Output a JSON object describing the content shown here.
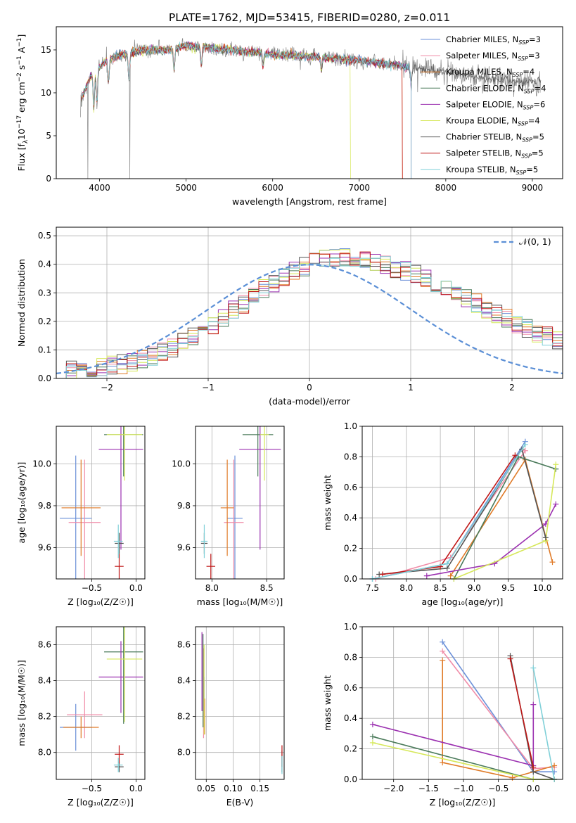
{
  "title": "PLATE=1762, MJD=53415, FIBERID=0280, z=0.011",
  "colors": [
    "#6a8fd8",
    "#f08ca8",
    "#e07b28",
    "#4a7a5a",
    "#9b30b0",
    "#d6e85a",
    "#555555",
    "#c01818",
    "#80d0d8"
  ],
  "chart_data": [
    {
      "type": "line",
      "id": "spectrum",
      "xlabel": "wavelength [Angstrom, rest frame]",
      "ylabel": "Flux [f",
      "ylabel_parts": {
        "base": "Flux [f",
        "sub": "λ",
        "mid": "10",
        "sup": "−17",
        "tail": " erg cm",
        "sup2": "−2",
        "tail2": " s",
        "sup3": "−1",
        "tail3": " A",
        "sup4": "−1",
        "end": "]"
      },
      "xlim": [
        3500,
        9350
      ],
      "ylim": [
        0,
        17.7
      ],
      "xticks": [
        "4000",
        "5000",
        "6000",
        "7000",
        "8000",
        "9000"
      ],
      "xtick_values": [
        4000,
        5000,
        6000,
        7000,
        8000,
        9000
      ],
      "yticks": [
        "0",
        "5",
        "10",
        "15"
      ],
      "ytick_values": [
        0,
        5,
        10,
        15
      ],
      "legend": [
        {
          "label": "Chabrier MILES, N",
          "sub": "SSP",
          "val": "=3"
        },
        {
          "label": "Salpeter MILES, N",
          "sub": "SSP",
          "val": "=3"
        },
        {
          "label": "Kroupa MILES, N",
          "sub": "SSP",
          "val": "=4"
        },
        {
          "label": "Chabrier ELODIE, N",
          "sub": "SSP",
          "val": "=4"
        },
        {
          "label": "Salpeter ELODIE, N",
          "sub": "SSP",
          "val": "=6"
        },
        {
          "label": "Kroupa ELODIE, N",
          "sub": "SSP",
          "val": "=4"
        },
        {
          "label": "Chabrier STELIB, N",
          "sub": "SSP",
          "val": "=5"
        },
        {
          "label": "Salpeter STELIB, N",
          "sub": "SSP",
          "val": "=5"
        },
        {
          "label": "Kroupa STELIB, N",
          "sub": "SSP",
          "val": "=5"
        }
      ],
      "continuum_x": [
        3780,
        3900,
        4000,
        4100,
        4300,
        4500,
        4800,
        5000,
        5200,
        5500,
        6000,
        6500,
        7000,
        7500,
        8000,
        8500,
        9000
      ],
      "continuum_y": [
        9,
        12,
        13,
        14,
        14.5,
        15,
        15,
        15.5,
        15.3,
        15,
        14.5,
        14.2,
        13.8,
        13.1,
        12.3,
        11.7,
        11.2
      ],
      "model_end": [
        7600,
        7600,
        7500,
        7600,
        7600,
        6900,
        9100,
        7500,
        7600
      ]
    },
    {
      "type": "histogram",
      "id": "residuals",
      "xlabel": "(data-model)/error",
      "ylabel": "Normed distribution",
      "xlim": [
        -2.5,
        2.5
      ],
      "ylim": [
        0,
        0.53
      ],
      "xticks": [
        "−2",
        "−1",
        "0",
        "1",
        "2"
      ],
      "xtick_values": [
        -2,
        -1,
        0,
        1,
        2
      ],
      "yticks": [
        "0.0",
        "0.1",
        "0.2",
        "0.3",
        "0.4",
        "0.5"
      ],
      "ytick_values": [
        0,
        0.1,
        0.2,
        0.3,
        0.4,
        0.5
      ],
      "legend": "𝒩(0, 1)",
      "bin_width": 0.1,
      "gauss": {
        "mu": 0,
        "sigma": 1
      }
    },
    {
      "type": "scatter",
      "id": "age-vs-Z",
      "xlabel": "Z [log₁₀(Z/Z☉)]",
      "ylabel": "age  [log₁₀(age/yr)]",
      "xlim": [
        -0.9,
        0.1
      ],
      "ylim": [
        9.45,
        10.18
      ],
      "xticks": [
        "−0.5",
        "0.0"
      ],
      "xtick_values": [
        -0.5,
        0.0
      ],
      "yticks": [
        "9.6",
        "9.8",
        "10.0"
      ],
      "ytick_values": [
        9.6,
        9.8,
        10.0
      ],
      "points": [
        {
          "x": -0.68,
          "y": 9.74,
          "xerr": 0.18,
          "yerr": 0.3,
          "c": 0
        },
        {
          "x": -0.58,
          "y": 9.72,
          "xerr": 0.18,
          "yerr": 0.3,
          "c": 1
        },
        {
          "x": -0.62,
          "y": 9.79,
          "xerr": 0.22,
          "yerr": 0.23,
          "c": 2
        },
        {
          "x": -0.14,
          "y": 10.14,
          "xerr": 0.22,
          "yerr": 0.2,
          "c": 3
        },
        {
          "x": -0.17,
          "y": 10.07,
          "xerr": 0.25,
          "yerr": 0.48,
          "c": 4
        },
        {
          "x": -0.13,
          "y": 10.14,
          "xerr": 0.2,
          "yerr": 0.22,
          "c": 5
        },
        {
          "x": -0.19,
          "y": 9.62,
          "xerr": 0.05,
          "yerr": 0.05,
          "c": 6
        },
        {
          "x": -0.19,
          "y": 9.51,
          "xerr": 0.05,
          "yerr": 0.06,
          "c": 7
        },
        {
          "x": -0.2,
          "y": 9.63,
          "xerr": 0.05,
          "yerr": 0.08,
          "c": 8
        }
      ]
    },
    {
      "type": "scatter",
      "id": "age-vs-mass",
      "xlabel": "mass [log₁₀(M/M☉)]",
      "ylabel": "",
      "xlim": [
        7.85,
        8.66
      ],
      "ylim": [
        9.45,
        10.18
      ],
      "xticks": [
        "8.0",
        "8.5"
      ],
      "xtick_values": [
        8.0,
        8.5
      ],
      "yticks": [
        "9.6",
        "9.8",
        "10.0"
      ],
      "ytick_values": [
        9.6,
        9.8,
        10.0
      ],
      "points": [
        {
          "x": 8.21,
          "y": 9.74,
          "xerr": 0.07,
          "yerr": 0.3,
          "c": 0
        },
        {
          "x": 8.2,
          "y": 9.72,
          "xerr": 0.09,
          "yerr": 0.3,
          "c": 1
        },
        {
          "x": 8.14,
          "y": 9.79,
          "xerr": 0.06,
          "yerr": 0.23,
          "c": 2
        },
        {
          "x": 8.42,
          "y": 10.14,
          "xerr": 0.14,
          "yerr": 0.2,
          "c": 3
        },
        {
          "x": 8.44,
          "y": 10.07,
          "xerr": 0.19,
          "yerr": 0.48,
          "c": 4
        },
        {
          "x": 8.48,
          "y": 10.14,
          "xerr": 0.04,
          "yerr": 0.22,
          "c": 5
        },
        {
          "x": 7.93,
          "y": 9.62,
          "xerr": 0.03,
          "yerr": 0.05,
          "c": 6
        },
        {
          "x": 7.99,
          "y": 9.51,
          "xerr": 0.04,
          "yerr": 0.06,
          "c": 7
        },
        {
          "x": 7.93,
          "y": 9.63,
          "xerr": 0.03,
          "yerr": 0.08,
          "c": 8
        }
      ]
    },
    {
      "type": "line",
      "id": "weight-vs-age",
      "xlabel": "age  [log₁₀(age/yr)]",
      "ylabel": "mass weight",
      "xlim": [
        7.35,
        10.3
      ],
      "ylim": [
        0,
        1
      ],
      "xticks": [
        "7.5",
        "8.0",
        "8.5",
        "9.0",
        "9.5",
        "10.0"
      ],
      "xtick_values": [
        7.5,
        8.0,
        8.5,
        9.0,
        9.5,
        10.0
      ],
      "yticks": [
        "0.0",
        "0.2",
        "0.4",
        "0.6",
        "0.8",
        "1.0"
      ],
      "ytick_values": [
        0,
        0.2,
        0.4,
        0.6,
        0.8,
        1.0
      ],
      "series": [
        {
          "c": 0,
          "x": [
            7.5,
            8.6,
            9.75
          ],
          "y": [
            0.0,
            0.1,
            0.9
          ]
        },
        {
          "c": 1,
          "x": [
            7.55,
            8.65,
            9.75
          ],
          "y": [
            0.0,
            0.14,
            0.84
          ]
        },
        {
          "c": 2,
          "x": [
            8.65,
            9.75,
            10.15
          ],
          "y": [
            0.02,
            0.78,
            0.11
          ]
        },
        {
          "c": 3,
          "x": [
            8.7,
            9.65,
            10.2
          ],
          "y": [
            0.0,
            0.8,
            0.72
          ]
        },
        {
          "c": 4,
          "x": [
            8.3,
            9.3,
            10.05,
            10.2
          ],
          "y": [
            0.02,
            0.1,
            0.36,
            0.49
          ]
        },
        {
          "c": 5,
          "x": [
            8.7,
            10.05,
            10.2
          ],
          "y": [
            0.0,
            0.25,
            0.75
          ]
        },
        {
          "c": 6,
          "x": [
            7.6,
            8.6,
            9.7,
            10.05
          ],
          "y": [
            0.03,
            0.07,
            0.85,
            0.27
          ]
        },
        {
          "c": 7,
          "x": [
            7.65,
            8.5,
            9.6
          ],
          "y": [
            0.03,
            0.08,
            0.81
          ]
        },
        {
          "c": 8,
          "x": [
            7.5,
            8.6,
            9.75
          ],
          "y": [
            0.0,
            0.1,
            0.88
          ]
        }
      ]
    },
    {
      "type": "scatter",
      "id": "mass-vs-Z",
      "xlabel": "Z [log₁₀(Z/Z☉)]",
      "ylabel": "mass [log₁₀(M/M☉)]",
      "xlim": [
        -0.9,
        0.1
      ],
      "ylim": [
        7.85,
        8.7
      ],
      "xticks": [
        "−0.5",
        "0.0"
      ],
      "xtick_values": [
        -0.5,
        0.0
      ],
      "yticks": [
        "8.0",
        "8.2",
        "8.4",
        "8.6"
      ],
      "ytick_values": [
        8.0,
        8.2,
        8.4,
        8.6
      ],
      "points": [
        {
          "x": -0.68,
          "y": 8.14,
          "xerr": 0.18,
          "yerr": 0.13,
          "c": 0
        },
        {
          "x": -0.58,
          "y": 8.21,
          "xerr": 0.2,
          "yerr": 0.13,
          "c": 1
        },
        {
          "x": -0.62,
          "y": 8.14,
          "xerr": 0.2,
          "yerr": 0.06,
          "c": 2
        },
        {
          "x": -0.14,
          "y": 8.56,
          "xerr": 0.22,
          "yerr": 0.4,
          "c": 3
        },
        {
          "x": -0.17,
          "y": 8.42,
          "xerr": 0.25,
          "yerr": 0.2,
          "c": 4
        },
        {
          "x": -0.13,
          "y": 8.52,
          "xerr": 0.2,
          "yerr": 0.35,
          "c": 5
        },
        {
          "x": -0.19,
          "y": 7.92,
          "xerr": 0.05,
          "yerr": 0.03,
          "c": 6
        },
        {
          "x": -0.19,
          "y": 7.99,
          "xerr": 0.05,
          "yerr": 0.05,
          "c": 7
        },
        {
          "x": -0.2,
          "y": 7.93,
          "xerr": 0.05,
          "yerr": 0.04,
          "c": 8
        }
      ]
    },
    {
      "type": "scatter",
      "id": "mass-vs-ebv",
      "xlabel": "E(B-V)",
      "ylabel": "",
      "xlim": [
        0.03,
        0.195
      ],
      "ylim": [
        7.85,
        8.7
      ],
      "xticks": [
        "0.05",
        "0.10",
        "0.15"
      ],
      "xtick_values": [
        0.05,
        0.1,
        0.15
      ],
      "yticks": [
        "8.0",
        "8.2",
        "8.4",
        "8.6"
      ],
      "ytick_values": [
        8.0,
        8.2,
        8.4,
        8.6
      ],
      "points": [
        {
          "x": 0.046,
          "y": 8.3,
          "xerr": 0,
          "yerr": 0.12,
          "c": 0
        },
        {
          "x": 0.045,
          "y": 8.33,
          "xerr": 0,
          "yerr": 0.25,
          "c": 1
        },
        {
          "x": 0.047,
          "y": 8.2,
          "xerr": 0,
          "yerr": 0.1,
          "c": 2
        },
        {
          "x": 0.044,
          "y": 8.4,
          "xerr": 0,
          "yerr": 0.26,
          "c": 3
        },
        {
          "x": 0.042,
          "y": 8.45,
          "xerr": 0,
          "yerr": 0.22,
          "c": 4
        },
        {
          "x": 0.046,
          "y": 8.35,
          "xerr": 0,
          "yerr": 0.25,
          "c": 5
        },
        {
          "x": 0.191,
          "y": 7.95,
          "xerr": 0,
          "yerr": 0.06,
          "c": 6
        },
        {
          "x": 0.191,
          "y": 7.98,
          "xerr": 0,
          "yerr": 0.06,
          "c": 7
        },
        {
          "x": 0.191,
          "y": 7.93,
          "xerr": 0,
          "yerr": 0.05,
          "c": 8
        }
      ]
    },
    {
      "type": "line",
      "id": "weight-vs-Z",
      "xlabel": "Z [log₁₀(Z/Z☉)]",
      "ylabel": "mass weight",
      "xlim": [
        -2.45,
        0.42
      ],
      "ylim": [
        0,
        1
      ],
      "xticks": [
        "−2.0",
        "−1.5",
        "−1.0",
        "−0.5",
        "0.0"
      ],
      "xtick_values": [
        -2.0,
        -1.5,
        -1.0,
        -0.5,
        0.0
      ],
      "yticks": [
        "0.0",
        "0.2",
        "0.4",
        "0.6",
        "0.8",
        "1.0"
      ],
      "ytick_values": [
        0,
        0.2,
        0.4,
        0.6,
        0.8,
        1.0
      ],
      "series": [
        {
          "c": 0,
          "x": [
            -1.3,
            0.0,
            0.3
          ],
          "y": [
            0.9,
            0.05,
            0.05
          ]
        },
        {
          "c": 1,
          "x": [
            -1.3,
            0.0,
            0.3
          ],
          "y": [
            0.84,
            0.07,
            0.08
          ]
        },
        {
          "c": 2,
          "x": [
            -1.3,
            -1.3,
            -0.3,
            0.3
          ],
          "y": [
            0.78,
            0.11,
            0.01,
            0.09
          ]
        },
        {
          "c": 3,
          "x": [
            -2.3,
            0.0,
            0.3
          ],
          "y": [
            0.28,
            0.0,
            0.0
          ]
        },
        {
          "c": 4,
          "x": [
            -2.3,
            0.0,
            0.0
          ],
          "y": [
            0.36,
            0.09,
            0.49
          ]
        },
        {
          "c": 5,
          "x": [
            -2.3,
            0.0,
            0.3
          ],
          "y": [
            0.24,
            0.0,
            0.0
          ]
        },
        {
          "c": 6,
          "x": [
            -0.33,
            0.0,
            0.3
          ],
          "y": [
            0.81,
            0.05,
            0.0
          ]
        },
        {
          "c": 7,
          "x": [
            -0.33,
            0.0
          ],
          "y": [
            0.79,
            0.08
          ]
        },
        {
          "c": 8,
          "x": [
            0.0,
            0.3
          ],
          "y": [
            0.73,
            0.0
          ]
        }
      ]
    }
  ]
}
